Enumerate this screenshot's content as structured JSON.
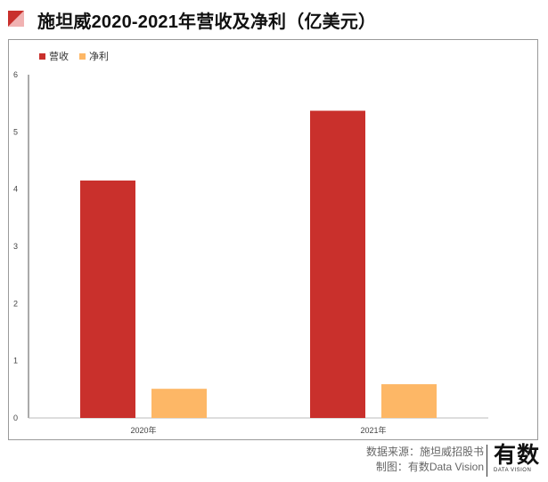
{
  "header": {
    "title": "施坦威2020-2021年营收及净利（亿美元）"
  },
  "chart_data": {
    "type": "bar",
    "categories": [
      "2020年",
      "2021年"
    ],
    "series": [
      {
        "name": "营收",
        "values": [
          4.15,
          5.37
        ],
        "color": "#c9302c"
      },
      {
        "name": "净利",
        "values": [
          0.51,
          0.59
        ],
        "color": "#fdb766"
      }
    ],
    "ylim": [
      0,
      6
    ],
    "yticks": [
      "0",
      "1",
      "2",
      "3",
      "4",
      "5",
      "6"
    ],
    "grid": false,
    "legend": "top-left"
  },
  "footer": {
    "source": "数据来源：施坦威招股书",
    "credit": "制图：有数Data Vision"
  },
  "brand": {
    "cn": "有数",
    "en": "DATA VISION"
  }
}
